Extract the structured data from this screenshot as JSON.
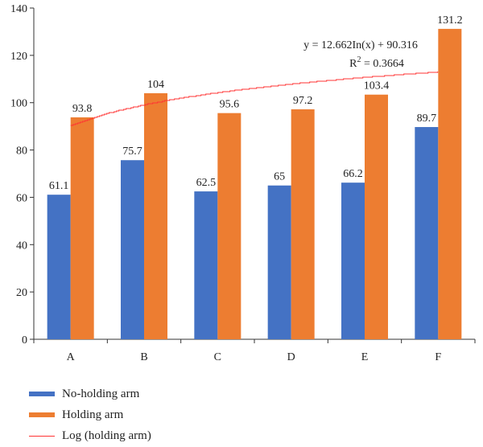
{
  "chart_data": {
    "type": "bar",
    "categories": [
      "A",
      "B",
      "C",
      "D",
      "E",
      "F"
    ],
    "series": [
      {
        "name": "No-holding arm",
        "values": [
          61.1,
          75.7,
          62.5,
          65,
          66.2,
          89.7
        ],
        "color": "#4472C4"
      },
      {
        "name": "Holding arm",
        "values": [
          93.8,
          104,
          95.6,
          97.2,
          103.4,
          131.2
        ],
        "color": "#ED7D31"
      }
    ],
    "data_labels": {
      "No-holding arm": [
        "61.1",
        "75.7",
        "62.5",
        "65",
        "66.2",
        "89.7"
      ],
      "Holding arm": [
        "93.8",
        "104",
        "95.6",
        "97.2",
        "103.4",
        "131.2"
      ]
    },
    "trendline": {
      "name": "Log (holding arm)",
      "type": "logarithmic",
      "a": 12.662,
      "b": 90.316,
      "color": "#FF3333",
      "equation": "y = 12.662In(x) + 90.316",
      "r2_prefix": "R",
      "r2_sup": "2",
      "r2_value": " = 0.3664"
    },
    "ylim": [
      0,
      140
    ],
    "yticks": [
      0,
      20,
      40,
      60,
      80,
      100,
      120,
      140
    ],
    "ytick_labels": [
      "0",
      "20",
      "40",
      "60",
      "80",
      "100",
      "120",
      "140"
    ],
    "grid": false,
    "legend_position": "bottom-left"
  },
  "legend": {
    "no_holding": "No-holding arm",
    "holding": "Holding arm",
    "log": "Log (holding arm)"
  },
  "colors": {
    "no_holding": "#4472C4",
    "holding": "#ED7D31",
    "log": "#FF3333"
  }
}
